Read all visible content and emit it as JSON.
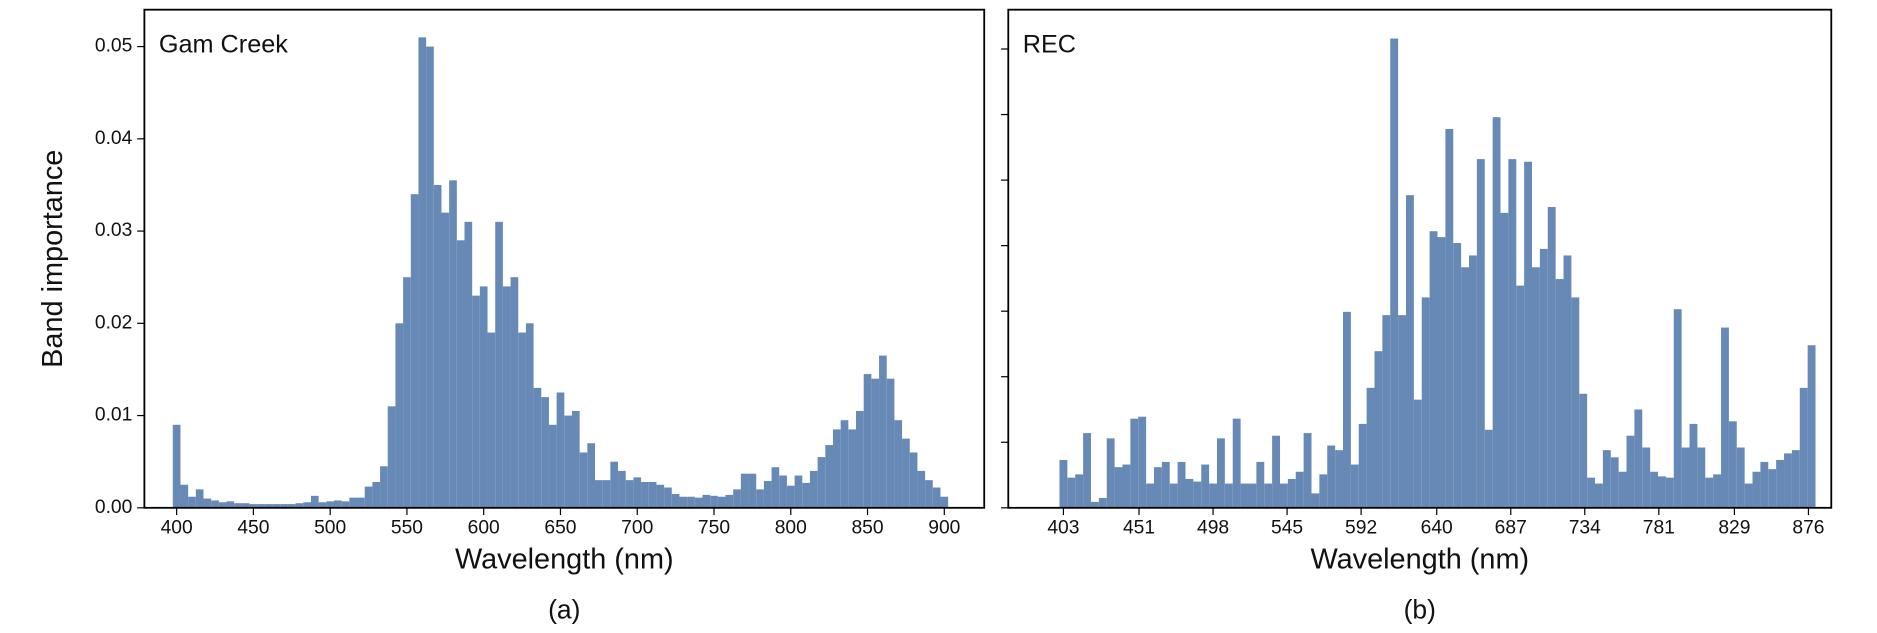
{
  "chart_data": [
    {
      "type": "bar",
      "title": "Gam Creek",
      "xlabel": "Wavelength (nm)",
      "ylabel": "Band importance",
      "caption": "(a)",
      "color": "#6789b6",
      "xlim": [
        379,
        926
      ],
      "ylim": [
        0,
        0.054
      ],
      "xticks": [
        400,
        450,
        500,
        550,
        600,
        650,
        700,
        750,
        800,
        850,
        900
      ],
      "yticks": [
        {
          "value": 0,
          "label": "0.00"
        },
        {
          "value": 0.01,
          "label": "0.01"
        },
        {
          "value": 0.02,
          "label": "0.02"
        },
        {
          "value": 0.03,
          "label": "0.03"
        },
        {
          "value": 0.04,
          "label": "0.04"
        },
        {
          "value": 0.05,
          "label": "0.05"
        }
      ],
      "ytick_labels": true,
      "x": [
        400,
        405,
        410,
        415,
        420,
        425,
        430,
        435,
        440,
        445,
        450,
        455,
        460,
        465,
        470,
        475,
        480,
        485,
        490,
        495,
        500,
        505,
        510,
        515,
        520,
        525,
        530,
        535,
        540,
        545,
        550,
        555,
        560,
        565,
        570,
        575,
        580,
        585,
        590,
        595,
        600,
        605,
        610,
        615,
        620,
        625,
        630,
        635,
        640,
        645,
        650,
        655,
        660,
        665,
        670,
        675,
        680,
        685,
        690,
        695,
        700,
        705,
        710,
        715,
        720,
        725,
        730,
        735,
        740,
        745,
        750,
        755,
        760,
        765,
        770,
        775,
        780,
        785,
        790,
        795,
        800,
        805,
        810,
        815,
        820,
        825,
        830,
        835,
        840,
        845,
        850,
        855,
        860,
        865,
        870,
        875,
        880,
        885,
        890,
        895,
        900
      ],
      "values": [
        0.009,
        0.0025,
        0.0012,
        0.002,
        0.001,
        0.0008,
        0.0006,
        0.0007,
        0.0005,
        0.0005,
        0.0004,
        0.0004,
        0.0004,
        0.0004,
        0.0004,
        0.0004,
        0.0005,
        0.0006,
        0.0013,
        0.0006,
        0.0007,
        0.0008,
        0.0007,
        0.0011,
        0.0011,
        0.0023,
        0.0028,
        0.0045,
        0.011,
        0.02,
        0.025,
        0.034,
        0.051,
        0.05,
        0.035,
        0.032,
        0.0355,
        0.029,
        0.031,
        0.023,
        0.024,
        0.019,
        0.031,
        0.024,
        0.025,
        0.019,
        0.02,
        0.013,
        0.012,
        0.009,
        0.0125,
        0.01,
        0.0105,
        0.006,
        0.007,
        0.003,
        0.003,
        0.005,
        0.004,
        0.003,
        0.0033,
        0.0028,
        0.0028,
        0.0025,
        0.0022,
        0.0015,
        0.0012,
        0.0012,
        0.0011,
        0.0014,
        0.0013,
        0.0012,
        0.0014,
        0.002,
        0.0037,
        0.0037,
        0.002,
        0.0029,
        0.0044,
        0.0035,
        0.0024,
        0.0035,
        0.0027,
        0.004,
        0.0055,
        0.0068,
        0.0085,
        0.0095,
        0.0085,
        0.0105,
        0.0145,
        0.014,
        0.0165,
        0.014,
        0.0095,
        0.0075,
        0.006,
        0.004,
        0.003,
        0.0022,
        0.0012
      ]
    },
    {
      "type": "bar",
      "title": "REC",
      "xlabel": "Wavelength (nm)",
      "caption": "(b)",
      "color": "#6789b6",
      "xlim": [
        368,
        890.5
      ],
      "ylim": [
        0,
        0.076
      ],
      "xticks": [
        403,
        451,
        498,
        545,
        592,
        640,
        687,
        734,
        781,
        829,
        876
      ],
      "yticks": [
        0,
        0.01,
        0.02,
        0.03,
        0.04,
        0.05,
        0.06,
        0.07
      ],
      "ytick_labels": false,
      "x": [
        403,
        408,
        413,
        418,
        423,
        428,
        433,
        438,
        443,
        448,
        453,
        458,
        463,
        468,
        473,
        478,
        483,
        488,
        493,
        498,
        503,
        508,
        513,
        518,
        523,
        528,
        533,
        538,
        543,
        548,
        553,
        558,
        563,
        568,
        573,
        578,
        583,
        588,
        593,
        598,
        603,
        608,
        613,
        618,
        623,
        628,
        633,
        638,
        643,
        648,
        653,
        658,
        663,
        668,
        673,
        678,
        683,
        688,
        693,
        698,
        703,
        708,
        713,
        718,
        723,
        728,
        733,
        738,
        743,
        748,
        753,
        758,
        763,
        768,
        773,
        778,
        783,
        788,
        793,
        798,
        803,
        808,
        813,
        818,
        823,
        828,
        833,
        838,
        843,
        848,
        853,
        858,
        863,
        868,
        873,
        878
      ],
      "values": [
        0.0073,
        0.0046,
        0.0051,
        0.0114,
        0.0009,
        0.0015,
        0.0106,
        0.0062,
        0.0066,
        0.0136,
        0.0139,
        0.0037,
        0.0062,
        0.007,
        0.0037,
        0.007,
        0.0044,
        0.004,
        0.0066,
        0.0037,
        0.0106,
        0.0037,
        0.0136,
        0.0037,
        0.0037,
        0.007,
        0.0037,
        0.011,
        0.0037,
        0.0044,
        0.0055,
        0.0114,
        0.0022,
        0.0051,
        0.0095,
        0.0088,
        0.0299,
        0.0066,
        0.0128,
        0.0183,
        0.0239,
        0.0294,
        0.0716,
        0.0294,
        0.0477,
        0.0165,
        0.0321,
        0.0422,
        0.0413,
        0.0578,
        0.0404,
        0.0367,
        0.0385,
        0.0532,
        0.0119,
        0.0596,
        0.045,
        0.0532,
        0.0339,
        0.0528,
        0.0367,
        0.0395,
        0.0459,
        0.0349,
        0.0385,
        0.0321,
        0.0174,
        0.0046,
        0.0037,
        0.0088,
        0.0077,
        0.0055,
        0.011,
        0.015,
        0.0092,
        0.0055,
        0.0048,
        0.0046,
        0.0303,
        0.0092,
        0.0128,
        0.0092,
        0.0046,
        0.0051,
        0.0275,
        0.0132,
        0.0092,
        0.0037,
        0.0055,
        0.007,
        0.0059,
        0.0073,
        0.0083,
        0.0088,
        0.0183,
        0.0248
      ]
    }
  ]
}
